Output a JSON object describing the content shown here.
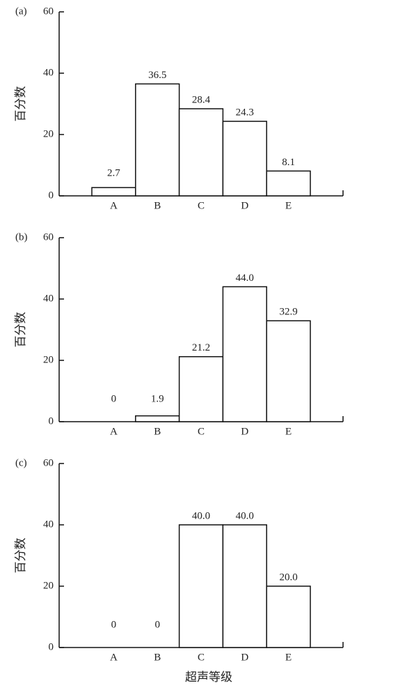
{
  "chart_data": [
    {
      "type": "bar",
      "panel_label": "(a)",
      "y_label": "百分数",
      "categories": [
        "A",
        "B",
        "C",
        "D",
        "E"
      ],
      "values": [
        2.7,
        36.5,
        28.4,
        24.3,
        8.1
      ],
      "color": "#ffffff",
      "ylim": [
        0,
        60
      ],
      "yticks": [
        0,
        20,
        40,
        60
      ]
    },
    {
      "type": "bar",
      "panel_label": "(b)",
      "y_label": "百分数",
      "categories": [
        "A",
        "B",
        "C",
        "D",
        "E"
      ],
      "values": [
        0,
        1.9,
        21.2,
        44.0,
        32.9
      ],
      "value_labels": [
        "0",
        "1.9",
        "21.2",
        "44.0",
        "32.9"
      ],
      "color": "#ffffff",
      "ylim": [
        0,
        60
      ],
      "yticks": [
        0,
        20,
        40,
        60
      ]
    },
    {
      "type": "bar",
      "panel_label": "(c)",
      "y_label": "百分数",
      "x_label": "超声等级",
      "categories": [
        "A",
        "B",
        "C",
        "D",
        "E"
      ],
      "values": [
        0,
        0,
        40.0,
        40.0,
        20.0
      ],
      "value_labels": [
        "0",
        "0",
        "40.0",
        "40.0",
        "20.0"
      ],
      "color": "#ffffff",
      "ylim": [
        0,
        60
      ],
      "yticks": [
        0,
        20,
        40,
        60
      ]
    }
  ]
}
